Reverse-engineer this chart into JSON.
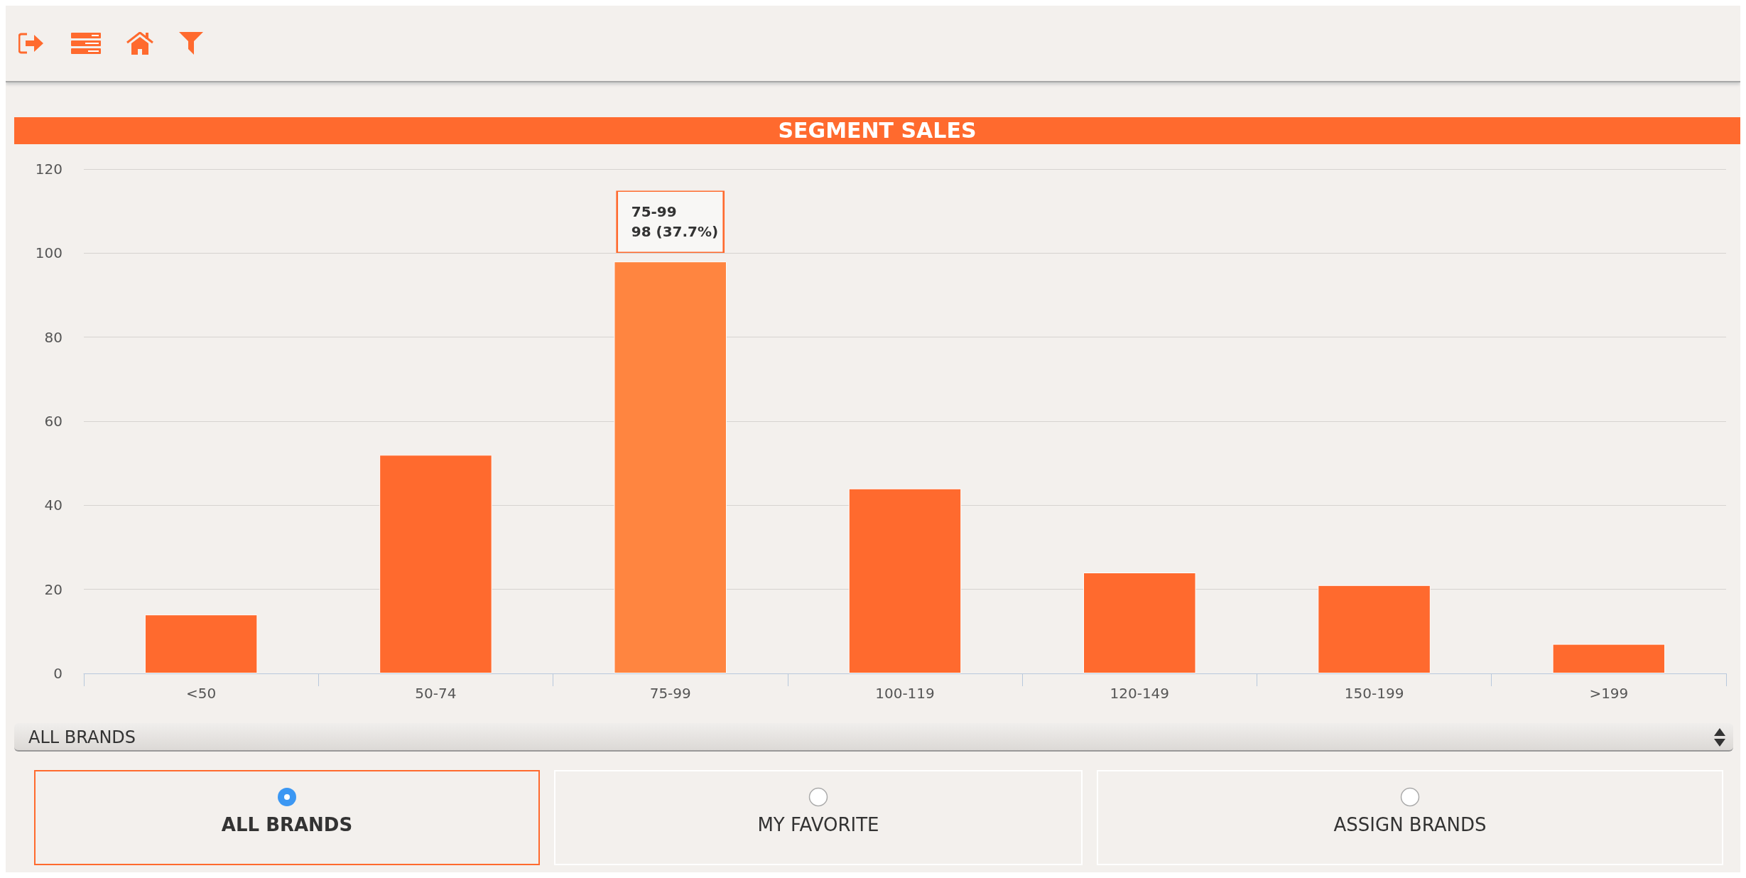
{
  "chart_data": {
    "type": "bar",
    "title": "SEGMENT SALES",
    "categories": [
      "<50",
      "50-74",
      "75-99",
      "100-119",
      "120-149",
      "150-199",
      ">199"
    ],
    "values": [
      14,
      52,
      98,
      44,
      24,
      21,
      7
    ],
    "colors": [
      "#ff6a2e",
      "#ff6a2e",
      "#ff8540",
      "#ff6a2e",
      "#ff6a2e",
      "#ff6a2e",
      "#ff6a2e"
    ],
    "ylim": [
      0,
      120
    ],
    "yticks": [
      0,
      20,
      40,
      60,
      80,
      100,
      120
    ],
    "grid": "y",
    "annotations": [
      {
        "text": "75-99\n98 (37.7%)",
        "x": "75-99",
        "y": 98
      },
      "ALL BRANDS",
      "ALL BRANDS",
      "MY FAVORITE",
      "ASSIGN BRANDS"
    ]
  }
}
